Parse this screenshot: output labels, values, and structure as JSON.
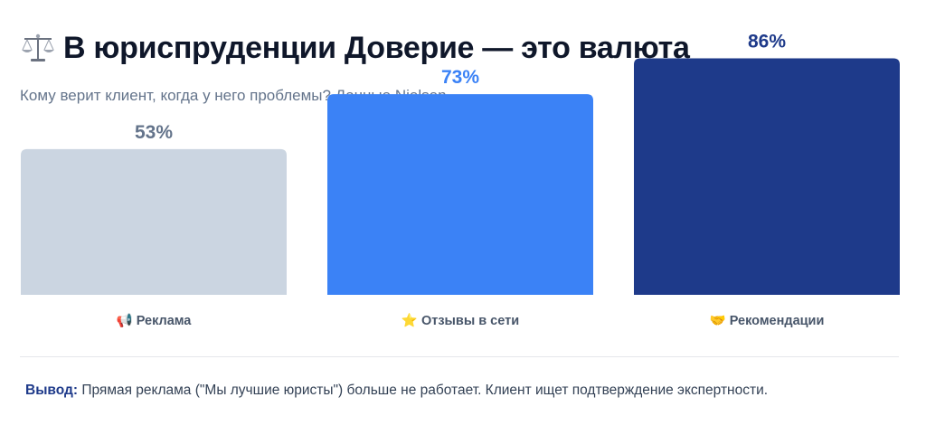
{
  "header": {
    "title": "В юриспруденции Доверие — это валюта",
    "title_icon": "balance-scale-icon",
    "subtitle": "Кому верит клиент, когда у него проблемы? Данные Nielsen."
  },
  "chart_data": {
    "type": "bar",
    "categories": [
      "📢 Реклама",
      "⭐ Отзывы в сети",
      "🤝 Рекомендации"
    ],
    "values": [
      53,
      73,
      86
    ],
    "value_labels": [
      "53%",
      "73%",
      "86%"
    ],
    "colors": [
      "#cbd5e1",
      "#3b82f6",
      "#1e3a8a"
    ],
    "label_colors": [
      "#64748b",
      "#3b82f6",
      "#1e3a8a"
    ],
    "ylim": [
      0,
      100
    ],
    "grid": false,
    "legend": "none"
  },
  "conclusion": {
    "label": "Вывод:",
    "text": " Прямая реклама (\"Мы лучшие юристы\") больше не работает. Клиент ищет подтверждение экспертности."
  }
}
